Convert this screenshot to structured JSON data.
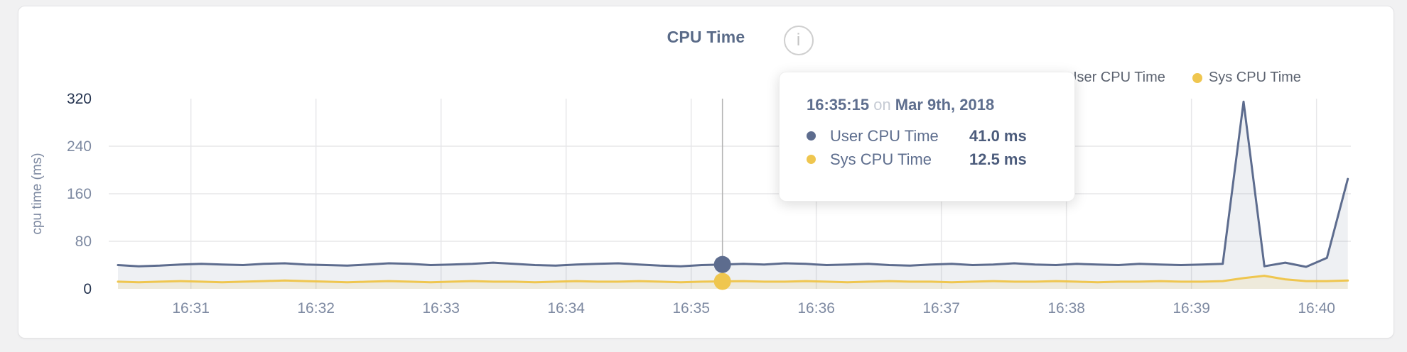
{
  "header": {
    "title": "CPU Time"
  },
  "legend": {
    "items": [
      {
        "label": "User CPU Time",
        "color": "#5d6c8e"
      },
      {
        "label": "Sys CPU Time",
        "color": "#efc64f"
      }
    ]
  },
  "tooltip": {
    "time": "16:35:15",
    "connector": "on",
    "date": "Mar 9th, 2018",
    "rows": [
      {
        "label": "User CPU Time",
        "value": "41.0 ms",
        "color": "#5d6c8e"
      },
      {
        "label": "Sys CPU Time",
        "value": "12.5 ms",
        "color": "#efc64f"
      }
    ]
  },
  "colors": {
    "axis_label": "#7d89a1",
    "axis_label_emphasis": "#24334f",
    "grid": "#e7e7e9",
    "crosshair": "#b3b3b3",
    "title": "#5a6b88"
  },
  "chart_data": {
    "type": "area",
    "title": "CPU Time",
    "xlabel": "",
    "ylabel": "cpu time (ms)",
    "ylim": [
      0,
      320
    ],
    "y_ticks": [
      0,
      80,
      160,
      240,
      320
    ],
    "y_ticks_emphasized": [
      0,
      320
    ],
    "x_ticks": [
      "16:31",
      "16:32",
      "16:33",
      "16:34",
      "16:35",
      "16:36",
      "16:37",
      "16:38",
      "16:39",
      "16:40"
    ],
    "grid": true,
    "legend_position": "top-right",
    "unit": "ms",
    "times": [
      "16:30:25",
      "16:30:35",
      "16:30:45",
      "16:30:55",
      "16:31:05",
      "16:31:15",
      "16:31:25",
      "16:31:35",
      "16:31:45",
      "16:31:55",
      "16:32:05",
      "16:32:15",
      "16:32:25",
      "16:32:35",
      "16:32:45",
      "16:32:55",
      "16:33:05",
      "16:33:15",
      "16:33:25",
      "16:33:35",
      "16:33:45",
      "16:33:55",
      "16:34:05",
      "16:34:15",
      "16:34:25",
      "16:34:35",
      "16:34:45",
      "16:34:55",
      "16:35:05",
      "16:35:15",
      "16:35:25",
      "16:35:35",
      "16:35:45",
      "16:35:55",
      "16:36:05",
      "16:36:15",
      "16:36:25",
      "16:36:35",
      "16:36:45",
      "16:36:55",
      "16:37:05",
      "16:37:15",
      "16:37:25",
      "16:37:35",
      "16:37:45",
      "16:37:55",
      "16:38:05",
      "16:38:15",
      "16:38:25",
      "16:38:35",
      "16:38:45",
      "16:38:55",
      "16:39:05",
      "16:39:15",
      "16:39:25",
      "16:39:35",
      "16:39:45",
      "16:39:55",
      "16:40:05",
      "16:40:15"
    ],
    "series": [
      {
        "name": "User CPU Time",
        "color": "#5d6c8e",
        "fill": "rgba(93,108,142,0.10)",
        "values": [
          40,
          38,
          39,
          41,
          42,
          41,
          40,
          42,
          43,
          41,
          40,
          39,
          41,
          43,
          42,
          40,
          41,
          42,
          44,
          42,
          40,
          39,
          41,
          42,
          43,
          41,
          39,
          38,
          40,
          41,
          42,
          41,
          43,
          42,
          40,
          41,
          42,
          40,
          39,
          41,
          42,
          40,
          41,
          43,
          41,
          40,
          42,
          41,
          40,
          42,
          41,
          40,
          41,
          42,
          315,
          38,
          44,
          37,
          52,
          185
        ]
      },
      {
        "name": "Sys CPU Time",
        "color": "#efc64f",
        "fill": "rgba(239,198,79,0.14)",
        "values": [
          12,
          11,
          12,
          13,
          12,
          11,
          12,
          13,
          14,
          13,
          12,
          11,
          12,
          13,
          12,
          11,
          12,
          13,
          12,
          12,
          11,
          12,
          13,
          12,
          12,
          13,
          12,
          11,
          12,
          12.5,
          13,
          12,
          12,
          13,
          12,
          11,
          12,
          13,
          12,
          12,
          11,
          12,
          13,
          12,
          12,
          13,
          12,
          11,
          12,
          12,
          13,
          12,
          12,
          13,
          18,
          22,
          16,
          13,
          13,
          14
        ]
      }
    ],
    "hover": {
      "time": "16:35:15",
      "index": 29
    }
  }
}
